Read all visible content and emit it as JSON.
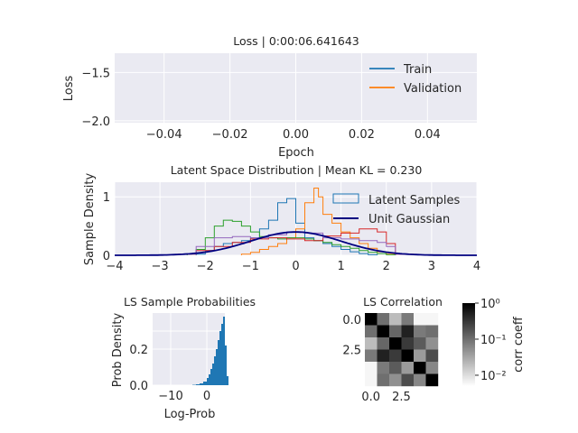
{
  "chart_data": [
    {
      "type": "line",
      "title": "Loss | 0:00:06.641643",
      "xlabel": "Epoch",
      "ylabel": "Loss",
      "xlim": [
        -0.055,
        0.055
      ],
      "ylim": [
        -2.02,
        -1.3
      ],
      "xticks": [
        "−0.04",
        "−0.02",
        "0.00",
        "0.02",
        "0.04"
      ],
      "yticks": [
        "−1.5",
        "−2.0"
      ],
      "series": [
        {
          "name": "Train",
          "color": "#1f77b4",
          "x": [],
          "y": []
        },
        {
          "name": "Validation",
          "color": "#ff7f0e",
          "x": [],
          "y": []
        }
      ],
      "grid": true,
      "legend": "top-right"
    },
    {
      "type": "area",
      "title": "Latent Space Distribution | Mean KL = 0.230",
      "xlabel": "",
      "ylabel": "Sample Density",
      "xlim": [
        -4,
        4
      ],
      "ylim": [
        0,
        1.25
      ],
      "xticks": [
        "−4",
        "−3",
        "−2",
        "−1",
        "0",
        "1",
        "2",
        "3",
        "4"
      ],
      "yticks": [
        "0",
        "1"
      ],
      "legend": "top-right",
      "legend_entries": [
        "Latent Samples",
        "Unit Gaussian"
      ],
      "series": [
        {
          "name": "Latent Samples",
          "color": "#1f77b4",
          "x": [
            -2.2,
            -2.0,
            -1.8,
            -1.6,
            -1.4,
            -1.2,
            -1.0,
            -0.8,
            -0.6,
            -0.4,
            -0.2,
            0.0,
            0.2,
            0.4,
            0.6,
            0.8,
            1.0,
            1.2,
            1.4,
            1.6
          ],
          "y": [
            0.02,
            0.08,
            0.15,
            0.2,
            0.22,
            0.25,
            0.3,
            0.45,
            0.6,
            0.9,
            0.97,
            0.55,
            0.3,
            0.25,
            0.2,
            0.15,
            0.1,
            0.06,
            0.03,
            0.01
          ]
        },
        {
          "color": "#ff7f0e",
          "x": [
            -1.2,
            -1.0,
            -0.8,
            -0.6,
            -0.4,
            -0.2,
            0.0,
            0.2,
            0.4,
            0.5,
            0.6,
            0.8,
            1.0,
            1.2,
            1.4,
            1.6,
            1.8,
            2.0
          ],
          "y": [
            0.02,
            0.05,
            0.1,
            0.15,
            0.2,
            0.3,
            0.45,
            0.9,
            1.15,
            1.0,
            0.7,
            0.55,
            0.4,
            0.3,
            0.2,
            0.12,
            0.06,
            0.02
          ]
        },
        {
          "color": "#2ca02c",
          "x": [
            -2.4,
            -2.2,
            -2.0,
            -1.8,
            -1.6,
            -1.4,
            -1.2,
            -1.0,
            -0.8,
            -0.6,
            -0.4,
            -0.2,
            0.0,
            0.2,
            0.4,
            0.6,
            0.8,
            1.0,
            1.2,
            1.4,
            1.6,
            1.8,
            2.0
          ],
          "y": [
            0.02,
            0.1,
            0.3,
            0.5,
            0.6,
            0.58,
            0.5,
            0.4,
            0.32,
            0.3,
            0.28,
            0.3,
            0.3,
            0.28,
            0.25,
            0.22,
            0.18,
            0.15,
            0.12,
            0.08,
            0.05,
            0.03,
            0.01
          ]
        },
        {
          "color": "#d62728",
          "x": [
            -2.6,
            -2.2,
            -1.8,
            -1.4,
            -1.0,
            -0.6,
            -0.2,
            0.2,
            0.6,
            1.0,
            1.4,
            1.8,
            2.0,
            2.2
          ],
          "y": [
            0.02,
            0.08,
            0.15,
            0.22,
            0.28,
            0.3,
            0.28,
            0.25,
            0.33,
            0.38,
            0.45,
            0.4,
            0.2,
            0.02
          ]
        },
        {
          "color": "#9467bd",
          "x": [
            -2.6,
            -2.2,
            -1.8,
            -1.4,
            -1.0,
            -0.6,
            -0.2,
            0.2,
            0.6,
            1.0,
            1.4,
            1.8,
            2.0,
            2.2
          ],
          "y": [
            0.02,
            0.15,
            0.3,
            0.32,
            0.3,
            0.35,
            0.4,
            0.38,
            0.3,
            0.28,
            0.25,
            0.22,
            0.15,
            0.02
          ]
        },
        {
          "name": "Unit Gaussian",
          "color": "#000080",
          "type": "normal_pdf",
          "mean": 0,
          "std": 1
        }
      ]
    },
    {
      "type": "bar",
      "title": "LS Sample Probabilities",
      "xlabel": "Log-Prob",
      "ylabel": "Prob Density",
      "xlim": [
        -15,
        5
      ],
      "ylim": [
        0,
        0.4
      ],
      "xticks": [
        "−10",
        "0"
      ],
      "yticks": [
        "0.0",
        "0.2"
      ],
      "color": "#1f77b4",
      "bins": [
        -4.0,
        -3.0,
        -2.0,
        -1.0,
        0.0,
        0.5,
        1.0,
        1.5,
        2.0,
        2.5,
        3.0,
        3.5,
        4.0,
        4.5,
        5.0,
        5.5
      ],
      "values": [
        0.002,
        0.005,
        0.01,
        0.02,
        0.04,
        0.06,
        0.09,
        0.12,
        0.16,
        0.2,
        0.25,
        0.3,
        0.34,
        0.38,
        0.22,
        0.05
      ]
    },
    {
      "type": "heatmap",
      "title": "LS Correlation",
      "xticks": [
        "0.0",
        "2.5"
      ],
      "yticks": [
        "0.0",
        "2.5"
      ],
      "colorbar_label": "corr coeff",
      "colorbar_ticks": [
        "10⁰",
        "10⁻¹",
        "10⁻²"
      ],
      "scale": "log",
      "range": [
        0.005,
        1
      ],
      "values": [
        [
          1.0,
          0.1,
          0.02,
          0.08,
          0.006,
          0.006
        ],
        [
          0.1,
          1.0,
          0.12,
          0.5,
          0.08,
          0.1
        ],
        [
          0.02,
          0.12,
          1.0,
          0.3,
          0.15,
          0.05
        ],
        [
          0.08,
          0.5,
          0.3,
          1.0,
          0.04,
          0.2
        ],
        [
          0.006,
          0.08,
          0.15,
          0.04,
          1.0,
          0.06
        ],
        [
          0.006,
          0.1,
          0.05,
          0.2,
          0.06,
          1.0
        ]
      ]
    }
  ]
}
